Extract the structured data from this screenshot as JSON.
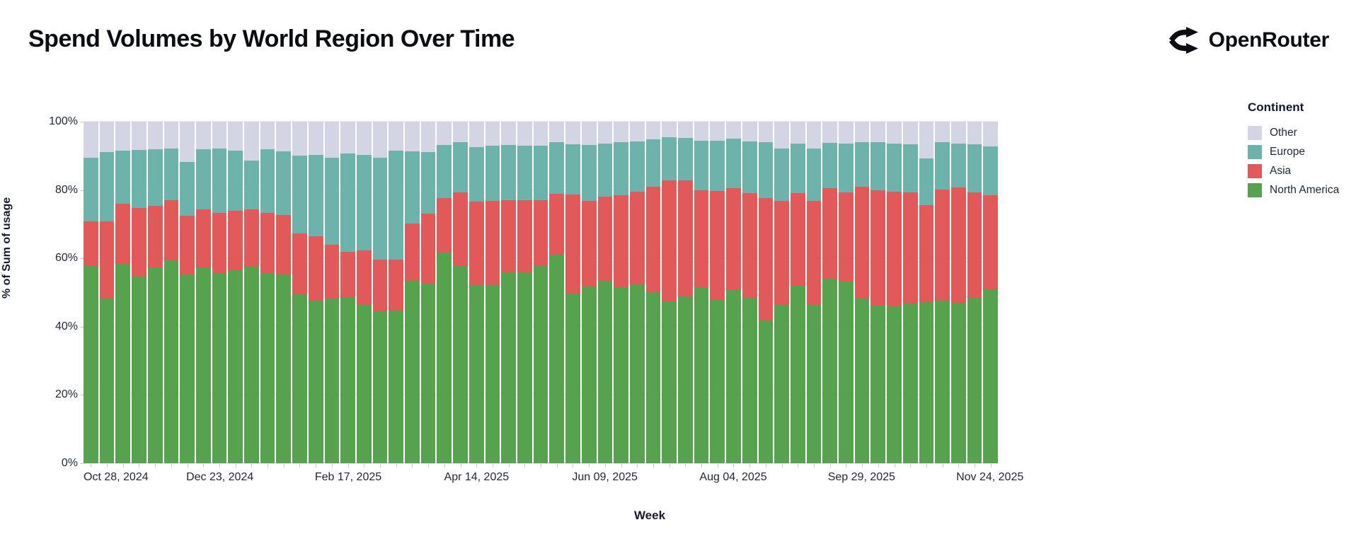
{
  "header": {
    "title": "Spend Volumes by World Region Over Time",
    "brand": "OpenRouter"
  },
  "legend": {
    "title": "Continent",
    "items": [
      {
        "label": "Other",
        "color": "#d4d5e4"
      },
      {
        "label": "Europe",
        "color": "#6db3ac"
      },
      {
        "label": "Asia",
        "color": "#e2595a"
      },
      {
        "label": "North America",
        "color": "#57a24f"
      }
    ]
  },
  "chart_data": {
    "type": "bar",
    "stacked": true,
    "stacked_to_100_percent": true,
    "title": "Spend Volumes by World Region Over Time",
    "xlabel": "Week",
    "ylabel": "% of Sum of usage",
    "ylim": [
      0,
      100
    ],
    "y_tick_labels": [
      "0%",
      "20%",
      "40%",
      "60%",
      "80%",
      "100%"
    ],
    "x_tick_interval_weeks": 1,
    "x_labeled_tick_indices": [
      0,
      8,
      16,
      24,
      32,
      40,
      48,
      56
    ],
    "x_labeled_ticks": [
      "Oct 28, 2024",
      "Dec 23, 2024",
      "Feb 17, 2025",
      "Apr 14, 2025",
      "Jun 09, 2025",
      "Aug 04, 2025",
      "Sep 29, 2025",
      "Nov 24, 2025"
    ],
    "grid": true,
    "legend_position": "right",
    "categories": [
      "Oct 28, 2024",
      "Nov 04, 2024",
      "Nov 11, 2024",
      "Nov 18, 2024",
      "Nov 25, 2024",
      "Dec 02, 2024",
      "Dec 09, 2024",
      "Dec 16, 2024",
      "Dec 23, 2024",
      "Dec 30, 2024",
      "Jan 06, 2025",
      "Jan 13, 2025",
      "Jan 20, 2025",
      "Jan 27, 2025",
      "Feb 03, 2025",
      "Feb 10, 2025",
      "Feb 17, 2025",
      "Feb 24, 2025",
      "Mar 03, 2025",
      "Mar 10, 2025",
      "Mar 17, 2025",
      "Mar 24, 2025",
      "Mar 31, 2025",
      "Apr 07, 2025",
      "Apr 14, 2025",
      "Apr 21, 2025",
      "Apr 28, 2025",
      "May 05, 2025",
      "May 12, 2025",
      "May 19, 2025",
      "May 26, 2025",
      "Jun 02, 2025",
      "Jun 09, 2025",
      "Jun 16, 2025",
      "Jun 23, 2025",
      "Jun 30, 2025",
      "Jul 07, 2025",
      "Jul 14, 2025",
      "Jul 21, 2025",
      "Jul 28, 2025",
      "Aug 04, 2025",
      "Aug 11, 2025",
      "Aug 18, 2025",
      "Aug 25, 2025",
      "Sep 01, 2025",
      "Sep 08, 2025",
      "Sep 15, 2025",
      "Sep 22, 2025",
      "Sep 29, 2025",
      "Oct 06, 2025",
      "Oct 13, 2025",
      "Oct 20, 2025",
      "Oct 27, 2025",
      "Nov 03, 2025",
      "Nov 10, 2025",
      "Nov 17, 2025",
      "Nov 24, 2025"
    ],
    "series": [
      {
        "name": "North America",
        "color": "#57a24f",
        "values": [
          57.7,
          48.2,
          58.4,
          54.6,
          57.3,
          59.5,
          55.2,
          57.4,
          55.8,
          56.5,
          57.5,
          55.6,
          55.2,
          49.4,
          47.7,
          48.3,
          48.7,
          46.3,
          44.5,
          44.7,
          53.4,
          52.5,
          61.8,
          57.7,
          52.1,
          52.1,
          55.9,
          56.0,
          57.7,
          61.1,
          49.7,
          51.8,
          53.4,
          51.5,
          52.3,
          50.2,
          47.4,
          48.8,
          51.6,
          47.9,
          50.8,
          48.5,
          41.8,
          46.4,
          52.0,
          46.3,
          54.1,
          53.2,
          48.3,
          46.1,
          45.9,
          46.8,
          47.2,
          47.6,
          47.0,
          48.5,
          51.0
        ]
      },
      {
        "name": "Asia",
        "color": "#e2595a",
        "values": [
          13.1,
          22.6,
          17.6,
          20.1,
          18.1,
          17.5,
          17.3,
          17.0,
          17.6,
          17.5,
          16.9,
          17.7,
          17.5,
          17.9,
          18.7,
          15.6,
          13.2,
          16.0,
          15.2,
          15.0,
          16.7,
          20.5,
          15.9,
          21.5,
          24.6,
          24.8,
          21.2,
          21.0,
          19.3,
          17.8,
          29.0,
          25.1,
          24.6,
          26.9,
          27.2,
          30.8,
          35.5,
          34.1,
          28.3,
          31.9,
          29.8,
          30.6,
          35.9,
          30.5,
          27.0,
          30.6,
          26.5,
          26.2,
          32.7,
          33.8,
          33.7,
          32.5,
          28.4,
          32.6,
          33.7,
          30.7,
          27.5
        ]
      },
      {
        "name": "Europe",
        "color": "#6db3ac",
        "values": [
          18.7,
          20.3,
          15.6,
          17.1,
          16.6,
          15.1,
          15.7,
          17.5,
          18.7,
          17.5,
          14.3,
          18.7,
          18.7,
          22.8,
          23.9,
          25.5,
          28.7,
          28.0,
          29.7,
          31.9,
          21.2,
          18.2,
          15.5,
          14.7,
          15.8,
          16.0,
          16.0,
          15.9,
          15.9,
          15.0,
          14.7,
          16.3,
          15.6,
          15.5,
          14.8,
          13.8,
          12.5,
          12.4,
          14.5,
          14.6,
          14.4,
          15.2,
          16.2,
          15.3,
          14.5,
          15.3,
          13.1,
          14.2,
          13.1,
          14.2,
          14.0,
          14.1,
          13.7,
          13.7,
          12.9,
          14.1,
          14.3
        ]
      },
      {
        "name": "Other",
        "color": "#d4d5e4",
        "values": [
          10.5,
          8.9,
          8.4,
          8.2,
          8.0,
          7.9,
          11.8,
          8.1,
          7.9,
          8.5,
          11.3,
          8.0,
          8.6,
          9.9,
          9.7,
          10.6,
          9.4,
          9.7,
          10.6,
          8.4,
          8.7,
          8.8,
          6.8,
          6.1,
          7.5,
          7.1,
          6.9,
          7.1,
          7.1,
          6.1,
          6.6,
          6.8,
          6.4,
          6.1,
          5.7,
          5.2,
          4.6,
          4.7,
          5.6,
          5.6,
          5.0,
          5.7,
          6.1,
          7.8,
          6.5,
          7.8,
          6.3,
          6.4,
          5.9,
          5.9,
          6.4,
          6.6,
          10.7,
          6.1,
          6.4,
          6.7,
          7.2
        ]
      }
    ]
  }
}
